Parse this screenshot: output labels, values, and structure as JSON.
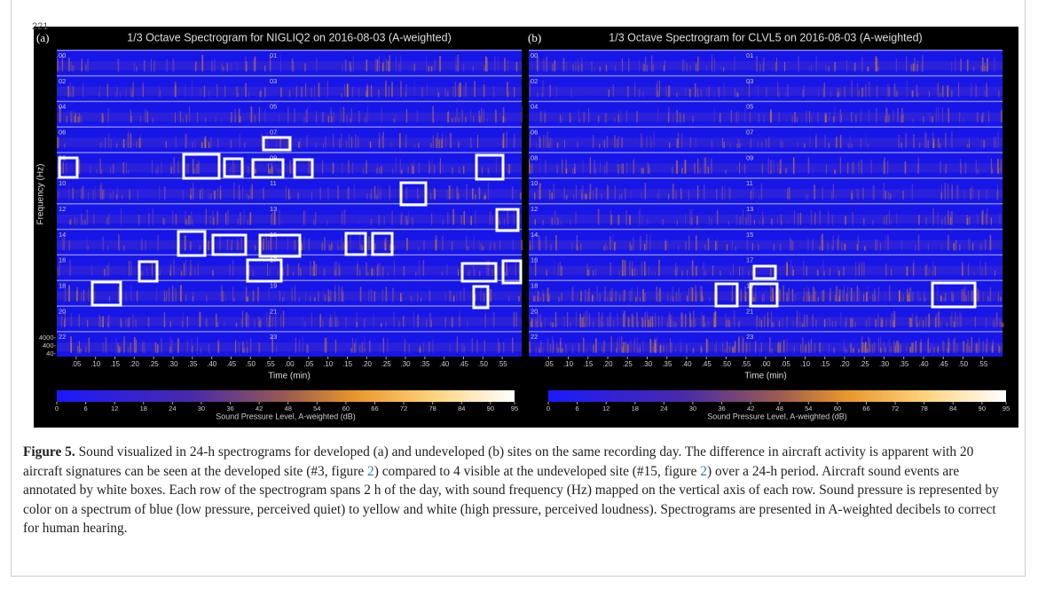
{
  "page_number": "221",
  "panels": [
    {
      "label": "(a)",
      "title": "1/3 Octave Spectrogram for NIGLIQ2 on 2016-08-03 (A-weighted)",
      "ylabel": "Frequency (Hz)",
      "freq_labels": [
        "4000-",
        "400-",
        "40-"
      ],
      "row_labels_left": [
        "00",
        "02",
        "04",
        "06",
        "08",
        "10",
        "12",
        "14",
        "16",
        "18",
        "20",
        "22"
      ],
      "row_labels_mid": [
        "01",
        "03",
        "05",
        "07",
        "09",
        "11",
        "13",
        "15",
        "17",
        "19",
        "21",
        "23"
      ],
      "xticks": [
        ".05",
        ".10",
        ".15",
        ".20",
        ".25",
        ".30",
        ".35",
        ".40",
        ".45",
        ".50",
        ".55",
        ".00",
        ".05",
        ".10",
        ".15",
        ".20",
        ".25",
        ".30",
        ".35",
        ".40",
        ".45",
        ".50",
        ".55"
      ],
      "xlabel": "Time (min)",
      "colorbar": {
        "clim": [
          0,
          95
        ],
        "ticks": [
          0,
          6,
          12,
          18,
          24,
          30,
          36,
          42,
          48,
          54,
          60,
          66,
          72,
          78,
          84,
          90,
          95
        ],
        "label": "Sound Pressure Level, A-weighted (dB)"
      }
    },
    {
      "label": "(b)",
      "title": "1/3 Octave Spectrogram for CLVL5 on 2016-08-03 (A-weighted)",
      "row_labels_left": [
        "00",
        "02",
        "04",
        "06",
        "08",
        "10",
        "12",
        "14",
        "16",
        "18",
        "20",
        "22"
      ],
      "row_labels_mid": [
        "01",
        "03",
        "05",
        "07",
        "09",
        "11",
        "13",
        "15",
        "17",
        "19",
        "21",
        "23"
      ],
      "xticks": [
        ".05",
        ".10",
        ".15",
        ".20",
        ".25",
        ".30",
        ".35",
        ".40",
        ".45",
        ".50",
        ".55",
        ".00",
        ".05",
        ".10",
        ".15",
        ".20",
        ".25",
        ".30",
        ".35",
        ".40",
        ".45",
        ".50",
        ".55"
      ],
      "xlabel": "Time (min)",
      "colorbar": {
        "clim": [
          0,
          95
        ],
        "ticks": [
          0,
          6,
          12,
          18,
          24,
          30,
          36,
          42,
          48,
          54,
          60,
          66,
          72,
          78,
          84,
          90,
          95
        ],
        "label": "Sound Pressure Level, A-weighted (dB)"
      }
    }
  ],
  "caption": {
    "label": "Figure 5.",
    "segments": [
      {
        "text": " Sound visualized in 24-h spectrograms for developed (a) and undeveloped (b) sites on the same recording day. The difference in aircraft activity is apparent with 20 aircraft signatures can be seen at the developed site (#3, figure "
      },
      {
        "ref": "2"
      },
      {
        "text": ") compared to 4 visible at the undeveloped site (#15, figure "
      },
      {
        "ref": "2"
      },
      {
        "text": ") over a 24-h period. Aircraft sound events are annotated by white boxes. Each row of the spectrogram spans 2 h of the day, with sound frequency (Hz) mapped on the vertical axis of each row. Sound pressure is represented by color on a spectrum of blue (low pressure, perceived quiet) to yellow and white (high pressure, perceived loudness). Spectrograms are presented in A-weighted decibels to correct for human hearing."
      }
    ]
  }
}
